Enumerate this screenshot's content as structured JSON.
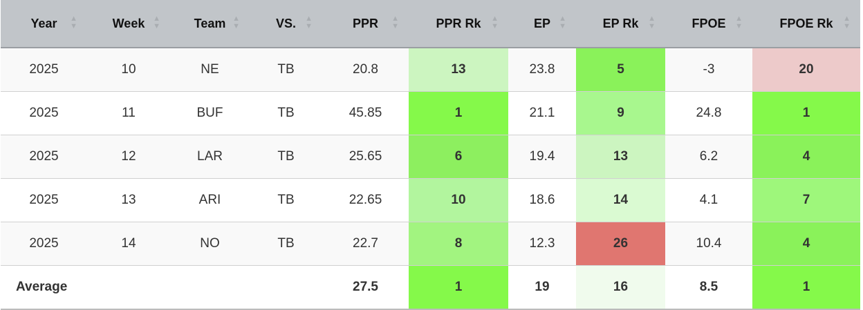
{
  "columns": [
    "Year",
    "Week",
    "Team",
    "VS.",
    "PPR",
    "PPR Rk",
    "EP",
    "EP Rk",
    "FPOE",
    "FPOE Rk"
  ],
  "rows": [
    {
      "cells": [
        "2025",
        "10",
        "NE",
        "TB",
        "20.8",
        "13",
        "23.8",
        "5",
        "-3",
        "20"
      ],
      "colors": {
        "5": "#ccf5c0",
        "7": "#8af25a",
        "9": "#edcaca"
      }
    },
    {
      "cells": [
        "2025",
        "11",
        "BUF",
        "TB",
        "45.85",
        "1",
        "21.1",
        "9",
        "24.8",
        "1"
      ],
      "colors": {
        "5": "#85f94a",
        "7": "#a8f78e",
        "9": "#85f94a"
      }
    },
    {
      "cells": [
        "2025",
        "12",
        "LAR",
        "TB",
        "25.65",
        "6",
        "19.4",
        "13",
        "6.2",
        "4"
      ],
      "colors": {
        "5": "#8def5f",
        "7": "#ccf5c0",
        "9": "#8af25a"
      }
    },
    {
      "cells": [
        "2025",
        "13",
        "ARI",
        "TB",
        "22.65",
        "10",
        "18.6",
        "14",
        "4.1",
        "7"
      ],
      "colors": {
        "5": "#b2f59e",
        "7": "#dafad2",
        "9": "#9ef77b"
      }
    },
    {
      "cells": [
        "2025",
        "14",
        "NO",
        "TB",
        "22.7",
        "8",
        "12.3",
        "26",
        "10.4",
        "4"
      ],
      "colors": {
        "5": "#a2f480",
        "7": "#e07670",
        "9": "#8af25a"
      }
    }
  ],
  "average": {
    "cells": [
      "Average",
      "",
      "",
      "",
      "27.5",
      "1",
      "19",
      "16",
      "8.5",
      "1"
    ],
    "colors": {
      "5": "#85f94a",
      "7": "#f0fbed",
      "9": "#85f94a"
    }
  }
}
